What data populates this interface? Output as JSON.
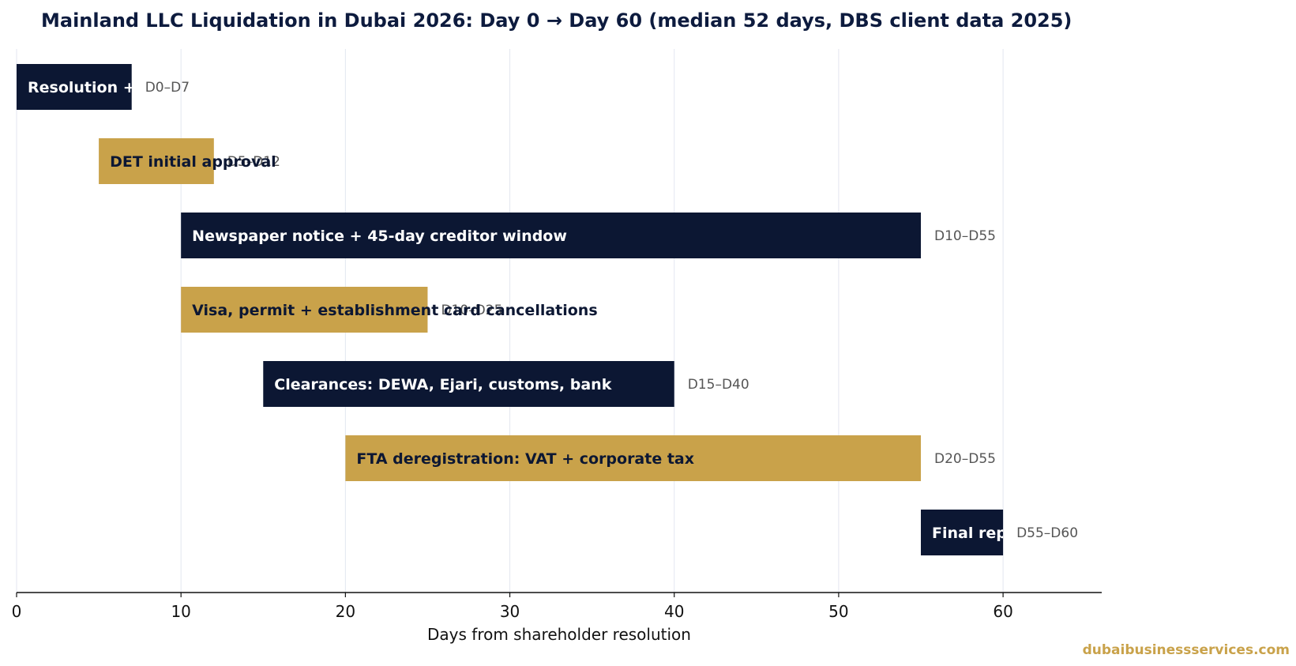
{
  "chart_data": {
    "type": "gantt",
    "title": "Mainland LLC Liquidation in Dubai 2026: Day 0 → Day 60 (median 52 days, DBS client data 2025)",
    "xlabel": "Days from shareholder resolution",
    "xlim": [
      0,
      66
    ],
    "xticks": [
      0,
      10,
      20,
      30,
      40,
      50,
      60
    ],
    "grid": "vertical",
    "colors": {
      "dark": "#0c1733",
      "gold": "#c9a24a",
      "light_text": "#ffffff",
      "dark_text": "#0c1733"
    },
    "tasks": [
      {
        "label": "Resolution + liquidator appointment",
        "start": 0,
        "end": 7,
        "range_label": "D0–D7",
        "color": "dark"
      },
      {
        "label": "DET initial approval",
        "start": 5,
        "end": 12,
        "range_label": "D5–D12",
        "color": "gold"
      },
      {
        "label": "Newspaper notice + 45-day creditor window",
        "start": 10,
        "end": 55,
        "range_label": "D10–D55",
        "color": "dark"
      },
      {
        "label": "Visa, permit + establishment card cancellations",
        "start": 10,
        "end": 25,
        "range_label": "D10–D25",
        "color": "gold"
      },
      {
        "label": "Clearances: DEWA, Ejari, customs, bank",
        "start": 15,
        "end": 40,
        "range_label": "D15–D40",
        "color": "dark"
      },
      {
        "label": "FTA deregistration: VAT + corporate tax",
        "start": 20,
        "end": 55,
        "range_label": "D20–D55",
        "color": "gold"
      },
      {
        "label": "Final report + DET licence cancellation",
        "start": 55,
        "end": 60,
        "range_label": "D55–D60",
        "color": "dark"
      }
    ]
  },
  "watermark": "dubaibusinessservices.com"
}
